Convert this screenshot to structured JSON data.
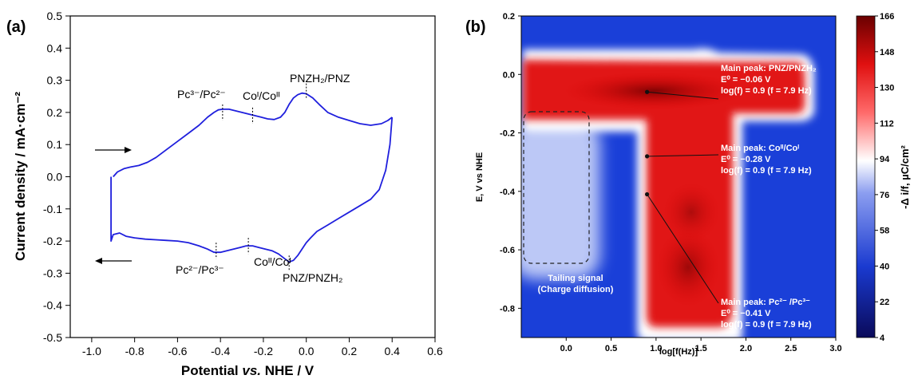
{
  "chart_data": [
    {
      "type": "line",
      "panel_label": "(a)",
      "xlabel_prefix": "Potential ",
      "xlabel_italic": "vs.",
      "xlabel_suffix": " NHE / V",
      "ylabel": "Current density / mA·cm⁻²",
      "xlim": [
        -1.1,
        0.6
      ],
      "ylim": [
        -0.5,
        0.5
      ],
      "xticks": [
        "-1.0",
        "-0.8",
        "-0.6",
        "-0.4",
        "-0.2",
        "0.0",
        "0.2",
        "0.4",
        "0.6"
      ],
      "yticks": [
        "0.5",
        "0.4",
        "0.3",
        "0.2",
        "0.1",
        "0.0",
        "-0.1",
        "-0.2",
        "-0.3",
        "-0.4",
        "-0.5"
      ],
      "line_color": "#1f1fdd",
      "series": [
        {
          "sweep": "anodic",
          "x": [
            -0.9,
            -0.88,
            -0.85,
            -0.82,
            -0.78,
            -0.74,
            -0.7,
            -0.65,
            -0.6,
            -0.55,
            -0.5,
            -0.46,
            -0.43,
            -0.41,
            -0.39,
            -0.36,
            -0.33,
            -0.3,
            -0.27,
            -0.24,
            -0.21,
            -0.18,
            -0.15,
            -0.12,
            -0.1,
            -0.08,
            -0.06,
            -0.04,
            -0.02,
            0.0,
            0.03,
            0.06,
            0.1,
            0.15,
            0.2,
            0.25,
            0.3,
            0.35,
            0.38,
            0.4
          ],
          "y": [
            0.0,
            0.015,
            0.025,
            0.03,
            0.035,
            0.045,
            0.06,
            0.085,
            0.11,
            0.135,
            0.16,
            0.185,
            0.2,
            0.208,
            0.21,
            0.21,
            0.205,
            0.2,
            0.195,
            0.19,
            0.185,
            0.18,
            0.178,
            0.185,
            0.2,
            0.225,
            0.245,
            0.255,
            0.26,
            0.258,
            0.245,
            0.225,
            0.2,
            0.185,
            0.175,
            0.165,
            0.16,
            0.165,
            0.175,
            0.185
          ]
        },
        {
          "sweep": "cathodic",
          "x": [
            0.4,
            0.39,
            0.37,
            0.34,
            0.3,
            0.25,
            0.2,
            0.15,
            0.1,
            0.05,
            0.02,
            0.0,
            -0.02,
            -0.04,
            -0.06,
            -0.08,
            -0.1,
            -0.13,
            -0.16,
            -0.19,
            -0.22,
            -0.25,
            -0.28,
            -0.31,
            -0.34,
            -0.37,
            -0.4,
            -0.43,
            -0.46,
            -0.5,
            -0.55,
            -0.6,
            -0.65,
            -0.7,
            -0.75,
            -0.8,
            -0.84,
            -0.87,
            -0.9,
            -0.91,
            -0.91
          ],
          "y": [
            0.185,
            0.1,
            0.02,
            -0.04,
            -0.07,
            -0.09,
            -0.11,
            -0.13,
            -0.15,
            -0.17,
            -0.19,
            -0.205,
            -0.225,
            -0.245,
            -0.26,
            -0.265,
            -0.255,
            -0.24,
            -0.23,
            -0.225,
            -0.22,
            -0.215,
            -0.215,
            -0.22,
            -0.225,
            -0.23,
            -0.235,
            -0.235,
            -0.225,
            -0.215,
            -0.205,
            -0.2,
            -0.198,
            -0.196,
            -0.194,
            -0.19,
            -0.185,
            -0.175,
            -0.18,
            -0.2,
            0.0
          ]
        }
      ],
      "markers": [
        -0.39,
        -0.25,
        0.0,
        -0.42,
        -0.27,
        -0.08
      ],
      "annotations": {
        "pc_ox_a": "Pc³⁻/Pc²⁻",
        "co_ox": "Coᴵ/Coᴵᴵ",
        "pnz_ox": "PNZH₂/PNZ",
        "pc_red": "Pc²⁻/Pc³⁻",
        "co_red": "Coᴵᴵ/Coᴵ",
        "pnz_red": "PNZ/PNZH₂"
      }
    },
    {
      "type": "heatmap",
      "panel_label": "(b)",
      "xlabel": "log[f(Hz)]",
      "ylabel": "E, V vs NHE",
      "xlim": [
        -0.5,
        3.0
      ],
      "ylim": [
        -0.9,
        0.2
      ],
      "xticks": [
        "0.0",
        "0.5",
        "1.0",
        "1.5",
        "2.0",
        "2.5",
        "3.0"
      ],
      "yticks": [
        "0.2",
        "0.0",
        "-0.2",
        "-0.4",
        "-0.6",
        "-0.8"
      ],
      "colorbar_label": "-Δ i/f, µC/cm²",
      "colorbar_ticks": [
        "166",
        "148",
        "130",
        "112",
        "94",
        "76",
        "58",
        "40",
        "22",
        "4"
      ],
      "colorbar_range": [
        4,
        166
      ],
      "peaks": [
        {
          "logf": 0.9,
          "E": -0.06,
          "line1": "Main peak: PNZ/PNZH₂",
          "line2": "E⁰ = −0.06 V",
          "line3": "log(f) = 0.9 (f = 7.9 Hz)"
        },
        {
          "logf": 0.9,
          "E": -0.28,
          "line1": "Main peak: Coᴵᴵ/Coᴵ",
          "line2": "E⁰ = −0.28 V",
          "line3": "log(f) = 0.9 (f = 7.9 Hz)"
        },
        {
          "logf": 0.9,
          "E": -0.41,
          "line1": "Main peak: Pc²⁻ /Pc³⁻",
          "line2": "E⁰ = −0.41 V",
          "line3": "log(f) = 0.9 (f = 7.9 Hz)"
        }
      ],
      "tailing_label_1": "Tailing signal",
      "tailing_label_2": "(Charge diffusion)"
    }
  ]
}
